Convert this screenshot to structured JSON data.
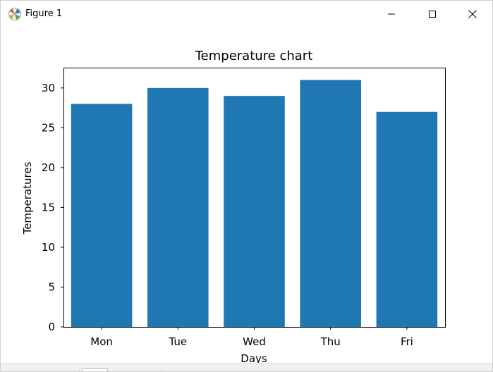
{
  "window": {
    "title": "Figure 1",
    "icon": "matplotlib-figure-icon"
  },
  "controls": {
    "minimize": "minimize-icon",
    "maximize": "maximize-icon",
    "close": "close-icon"
  },
  "chart_data": {
    "type": "bar",
    "title": "Temperature chart",
    "xlabel": "Days",
    "ylabel": "Temperatures",
    "categories": [
      "Mon",
      "Tue",
      "Wed",
      "Thu",
      "Fri"
    ],
    "values": [
      28,
      30,
      29,
      31,
      27
    ],
    "ylim": [
      0,
      32.55
    ],
    "yticks": [
      0,
      5,
      10,
      15,
      20,
      25,
      30
    ],
    "bar_color": "#1f77b4",
    "grid": false,
    "legend": "none"
  }
}
